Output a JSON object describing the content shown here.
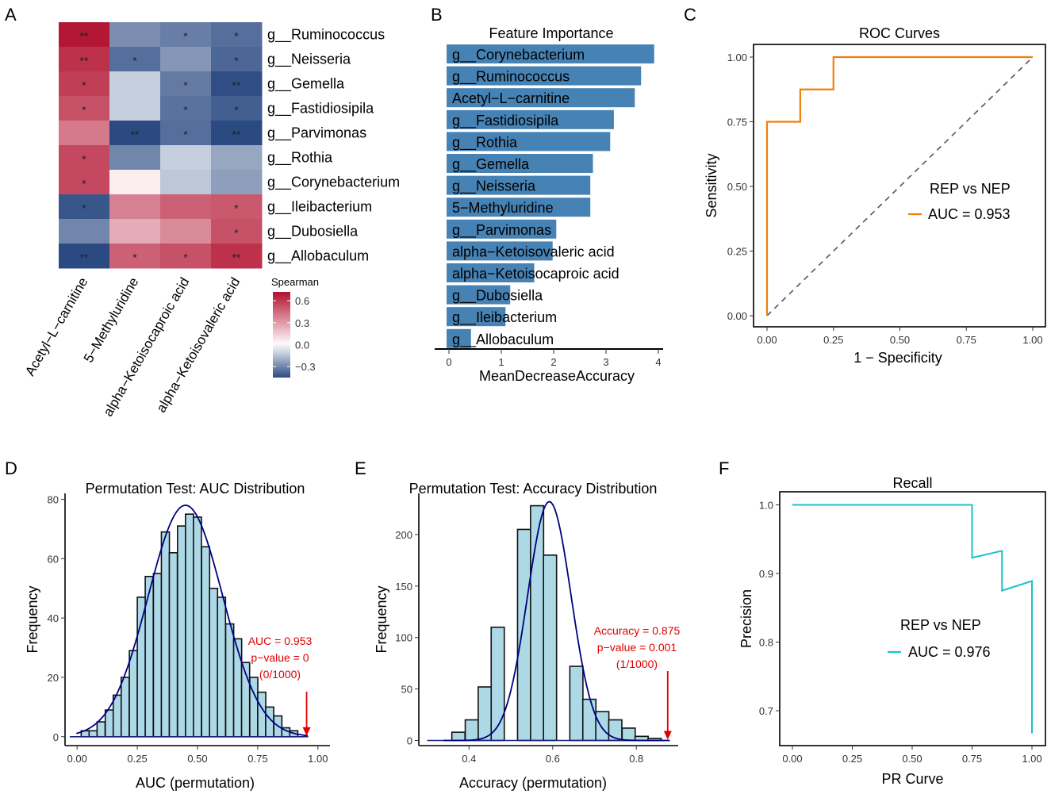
{
  "panel_labels": [
    "A",
    "B",
    "C",
    "D",
    "E",
    "F"
  ],
  "chart_data": [
    {
      "id": "A",
      "type": "heatmap",
      "title": "",
      "rows": [
        "g__Ruminococcus",
        "g__Neisseria",
        "g__Gemella",
        "g__Fastidiosipila",
        "g__Parvimonas",
        "g__Rothia",
        "g__Corynebacterium",
        "g__Ileibacterium",
        "g__Dubosiella",
        "g__Allobaculum"
      ],
      "columns": [
        "Acetyl−L−carnitine",
        "5−Methyluridine",
        "alpha−Ketoisocaproic acid",
        "alpha−Ketoisovaleric acid"
      ],
      "values": [
        [
          0.7,
          -0.28,
          -0.32,
          -0.36
        ],
        [
          0.62,
          -0.36,
          -0.26,
          -0.38
        ],
        [
          0.58,
          -0.12,
          -0.33,
          -0.44
        ],
        [
          0.52,
          -0.12,
          -0.35,
          -0.4
        ],
        [
          0.4,
          -0.52,
          -0.36,
          -0.55
        ],
        [
          0.55,
          -0.3,
          -0.12,
          -0.22
        ],
        [
          0.55,
          0.05,
          -0.14,
          -0.24
        ],
        [
          -0.42,
          0.38,
          0.48,
          0.5
        ],
        [
          -0.3,
          0.25,
          0.35,
          0.52
        ],
        [
          -0.5,
          0.48,
          0.52,
          0.62
        ]
      ],
      "stars": [
        [
          "**",
          "",
          "*",
          "*"
        ],
        [
          "**",
          "*",
          "",
          "*"
        ],
        [
          "*",
          "",
          "*",
          "**"
        ],
        [
          "*",
          "",
          "*",
          "*"
        ],
        [
          "",
          "**",
          "*",
          "**"
        ],
        [
          "*",
          "",
          "",
          ""
        ],
        [
          "*",
          "",
          "",
          ""
        ],
        [
          "*",
          "",
          "",
          "*"
        ],
        [
          "",
          "",
          "",
          "*"
        ],
        [
          "**",
          "*",
          "*",
          "**"
        ]
      ],
      "legend_title": "Spearman",
      "legend_ticks": [
        "0.6",
        "0.3",
        "0.0",
        "−0.3"
      ],
      "legend_tick_values": [
        0.6,
        0.3,
        0.0,
        -0.3
      ],
      "color_range": [
        -0.45,
        0.72
      ],
      "colors": {
        "low": "#2b4a82",
        "mid": "#ffffff",
        "high": "#b2102e"
      }
    },
    {
      "id": "B",
      "type": "bar",
      "orientation": "horizontal",
      "title": "Feature Importance",
      "xlabel": "MeanDecreaseAccuracy",
      "categories": [
        "g__Corynebacterium",
        "g__Ruminococcus",
        "Acetyl−L−carnitine",
        "g__Fastidiosipila",
        "g__Rothia",
        "g__Gemella",
        "g__Neisseria",
        "5−Methyluridine",
        "g__Parvimonas",
        "alpha−Ketoisovaleric acid",
        "alpha−Ketoisocaproic acid",
        "g__Dubosiella",
        "g__Ileibacterium",
        "g__Allobaculum"
      ],
      "values": [
        3.92,
        3.67,
        3.55,
        3.15,
        3.08,
        2.75,
        2.7,
        2.7,
        2.05,
        1.98,
        1.63,
        1.17,
        1.08,
        0.42
      ],
      "xlim": [
        0,
        4
      ],
      "xticks": [
        "0",
        "1",
        "2",
        "3",
        "4"
      ],
      "bar_color": "#4682b4"
    },
    {
      "id": "C",
      "type": "line",
      "title": "ROC Curves",
      "xlabel": "1 − Specificity",
      "ylabel": "Sensitivity",
      "xlim": [
        0,
        1
      ],
      "ylim": [
        0,
        1
      ],
      "xticks": [
        "0.00",
        "0.25",
        "0.50",
        "0.75",
        "1.00"
      ],
      "yticks": [
        "0.00",
        "0.25",
        "0.50",
        "0.75",
        "1.00"
      ],
      "series": [
        {
          "name": "AUC = 0.953",
          "color": "#f07f09",
          "x": [
            0,
            0,
            0.125,
            0.125,
            0.25,
            0.25,
            1.0
          ],
          "y": [
            0,
            0.75,
            0.75,
            0.875,
            0.875,
            1.0,
            1.0
          ]
        }
      ],
      "diagonal": true,
      "legend_title": "REP vs NEP"
    },
    {
      "id": "D",
      "type": "bar",
      "subtype": "histogram",
      "title": "Permutation Test: AUC Distribution",
      "xlabel": "AUC (permutation)",
      "ylabel": "Frequency",
      "bin_width": 0.0333,
      "bin_starts": [
        0.017,
        0.05,
        0.083,
        0.117,
        0.15,
        0.183,
        0.217,
        0.25,
        0.283,
        0.317,
        0.35,
        0.383,
        0.417,
        0.45,
        0.483,
        0.517,
        0.55,
        0.583,
        0.617,
        0.65,
        0.683,
        0.717,
        0.75,
        0.783,
        0.817,
        0.85,
        0.883,
        0.917,
        0.95
      ],
      "values": [
        2,
        2,
        5,
        9,
        14,
        20,
        29,
        47,
        54,
        55,
        69,
        62,
        71,
        75,
        74,
        64,
        50,
        47,
        38,
        33,
        25,
        20,
        15,
        10,
        7,
        3,
        2,
        0,
        0
      ],
      "density_peak": 78,
      "density_mean": 0.45,
      "density_sd": 0.155,
      "xlim": [
        -0.05,
        1.05
      ],
      "ylim": [
        -3,
        82
      ],
      "xticks": [
        "0.00",
        "0.25",
        "0.50",
        "0.75",
        "1.00"
      ],
      "xtick_values": [
        0,
        0.25,
        0.5,
        0.75,
        1.0
      ],
      "yticks": [
        "0",
        "20",
        "40",
        "60",
        "80"
      ],
      "ytick_values": [
        0,
        20,
        40,
        60,
        80
      ],
      "observed": 0.953,
      "annotation": [
        "AUC = 0.953",
        "p−value = 0",
        "(0/1000)"
      ]
    },
    {
      "id": "E",
      "type": "bar",
      "subtype": "histogram",
      "title": "Permutation Test: Accuracy Distribution",
      "xlabel": "Accuracy (permutation)",
      "ylabel": "Frequency",
      "bin_width": 0.0313,
      "bin_starts": [
        0.359,
        0.391,
        0.422,
        0.453,
        0.484,
        0.516,
        0.547,
        0.578,
        0.609,
        0.641,
        0.672,
        0.703,
        0.734,
        0.766,
        0.797,
        0.828
      ],
      "values": [
        8,
        20,
        52,
        110,
        0,
        205,
        228,
        180,
        0,
        72,
        40,
        28,
        20,
        12,
        4,
        2
      ],
      "density_peak": 232,
      "density_mean": 0.592,
      "density_sd": 0.052,
      "xlim": [
        0.28,
        0.9
      ],
      "ylim": [
        -5,
        240
      ],
      "xticks": [
        "0.4",
        "0.6",
        "0.8"
      ],
      "xtick_values": [
        0.4,
        0.6,
        0.8
      ],
      "yticks": [
        "0",
        "50",
        "100",
        "150",
        "200"
      ],
      "ytick_values": [
        0,
        50,
        100,
        150,
        200
      ],
      "observed": 0.875,
      "annotation": [
        "Accuracy = 0.875",
        "p−value = 0.001",
        "(1/1000)"
      ]
    },
    {
      "id": "F",
      "type": "line",
      "title": "Recall",
      "xlabel": "PR Curve",
      "ylabel": "Precision",
      "xlim": [
        -0.05,
        1.05
      ],
      "ylim": [
        0.65,
        1.03
      ],
      "xticks": [
        "0.00",
        "0.25",
        "0.50",
        "0.75",
        "1.00"
      ],
      "xtick_values": [
        0,
        0.25,
        0.5,
        0.75,
        1.0
      ],
      "yticks": [
        "0.7",
        "0.8",
        "0.9",
        "1.0"
      ],
      "ytick_values": [
        0.7,
        0.8,
        0.9,
        1.0
      ],
      "series": [
        {
          "name": "AUC = 0.976",
          "color": "#17c3c8",
          "x": [
            0,
            0.75,
            0.75,
            0.875,
            0.875,
            1.0,
            1.0
          ],
          "y": [
            1.0,
            1.0,
            0.923,
            0.933,
            0.875,
            0.889,
            0.667
          ]
        }
      ],
      "legend_title": "REP vs NEP"
    }
  ]
}
